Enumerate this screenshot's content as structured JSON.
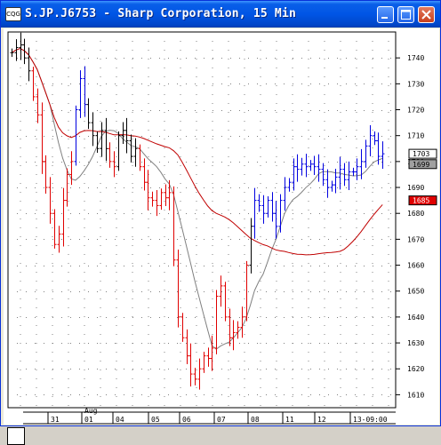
{
  "window": {
    "title": "S.JP.J6753 - Sharp Corporation, 15 Min",
    "app_icon_text": "CQG",
    "buttons": [
      "minimize",
      "maximize",
      "close"
    ]
  },
  "chart_data": {
    "type": "candlestick",
    "title": "",
    "ylim": [
      1605,
      1750
    ],
    "y_ticks": [
      1610,
      1620,
      1630,
      1640,
      1650,
      1660,
      1670,
      1680,
      1690,
      1700,
      1710,
      1720,
      1730,
      1740
    ],
    "x_labels": [
      "31",
      "01",
      "04",
      "05",
      "06",
      "07",
      "08",
      "11",
      "12",
      "13-09:00"
    ],
    "x_top_label": "Aug",
    "price_labels": [
      {
        "text": "1703",
        "value": 1703,
        "bg": "#ffffff",
        "fg": "#000000"
      },
      {
        "text": "1699",
        "value": 1699,
        "bg": "#a0a0a0",
        "fg": "#000000"
      },
      {
        "text": "1685",
        "value": 1685,
        "bg": "#e00000",
        "fg": "#ffffff"
      }
    ],
    "colors": {
      "bars_default": "#000000",
      "bars_down": "#e00000",
      "bars_up": "#0000e0",
      "ma_fast": "#808080",
      "ma_slow": "#c00000",
      "grid": "#808080"
    },
    "grid": true,
    "close_series": [
      1742,
      1744,
      1745,
      1740,
      1735,
      1725,
      1718,
      1700,
      1690,
      1680,
      1668,
      1672,
      1685,
      1695,
      1700,
      1720,
      1732,
      1722,
      1715,
      1710,
      1705,
      1712,
      1705,
      1700,
      1698,
      1710,
      1712,
      1708,
      1702,
      1705,
      1698,
      1692,
      1686,
      1685,
      1683,
      1688,
      1686,
      1688,
      1662,
      1640,
      1632,
      1625,
      1618,
      1616,
      1620,
      1625,
      1624,
      1628,
      1648,
      1652,
      1640,
      1632,
      1634,
      1636,
      1640,
      1660,
      1675,
      1685,
      1683,
      1680,
      1685,
      1680,
      1675,
      1685,
      1690,
      1692,
      1698,
      1697,
      1699,
      1698,
      1699,
      1698,
      1697,
      1693,
      1690,
      1691,
      1694,
      1697,
      1693,
      1696,
      1696,
      1698,
      1700,
      1706,
      1710,
      1708,
      1702,
      1703
    ]
  }
}
